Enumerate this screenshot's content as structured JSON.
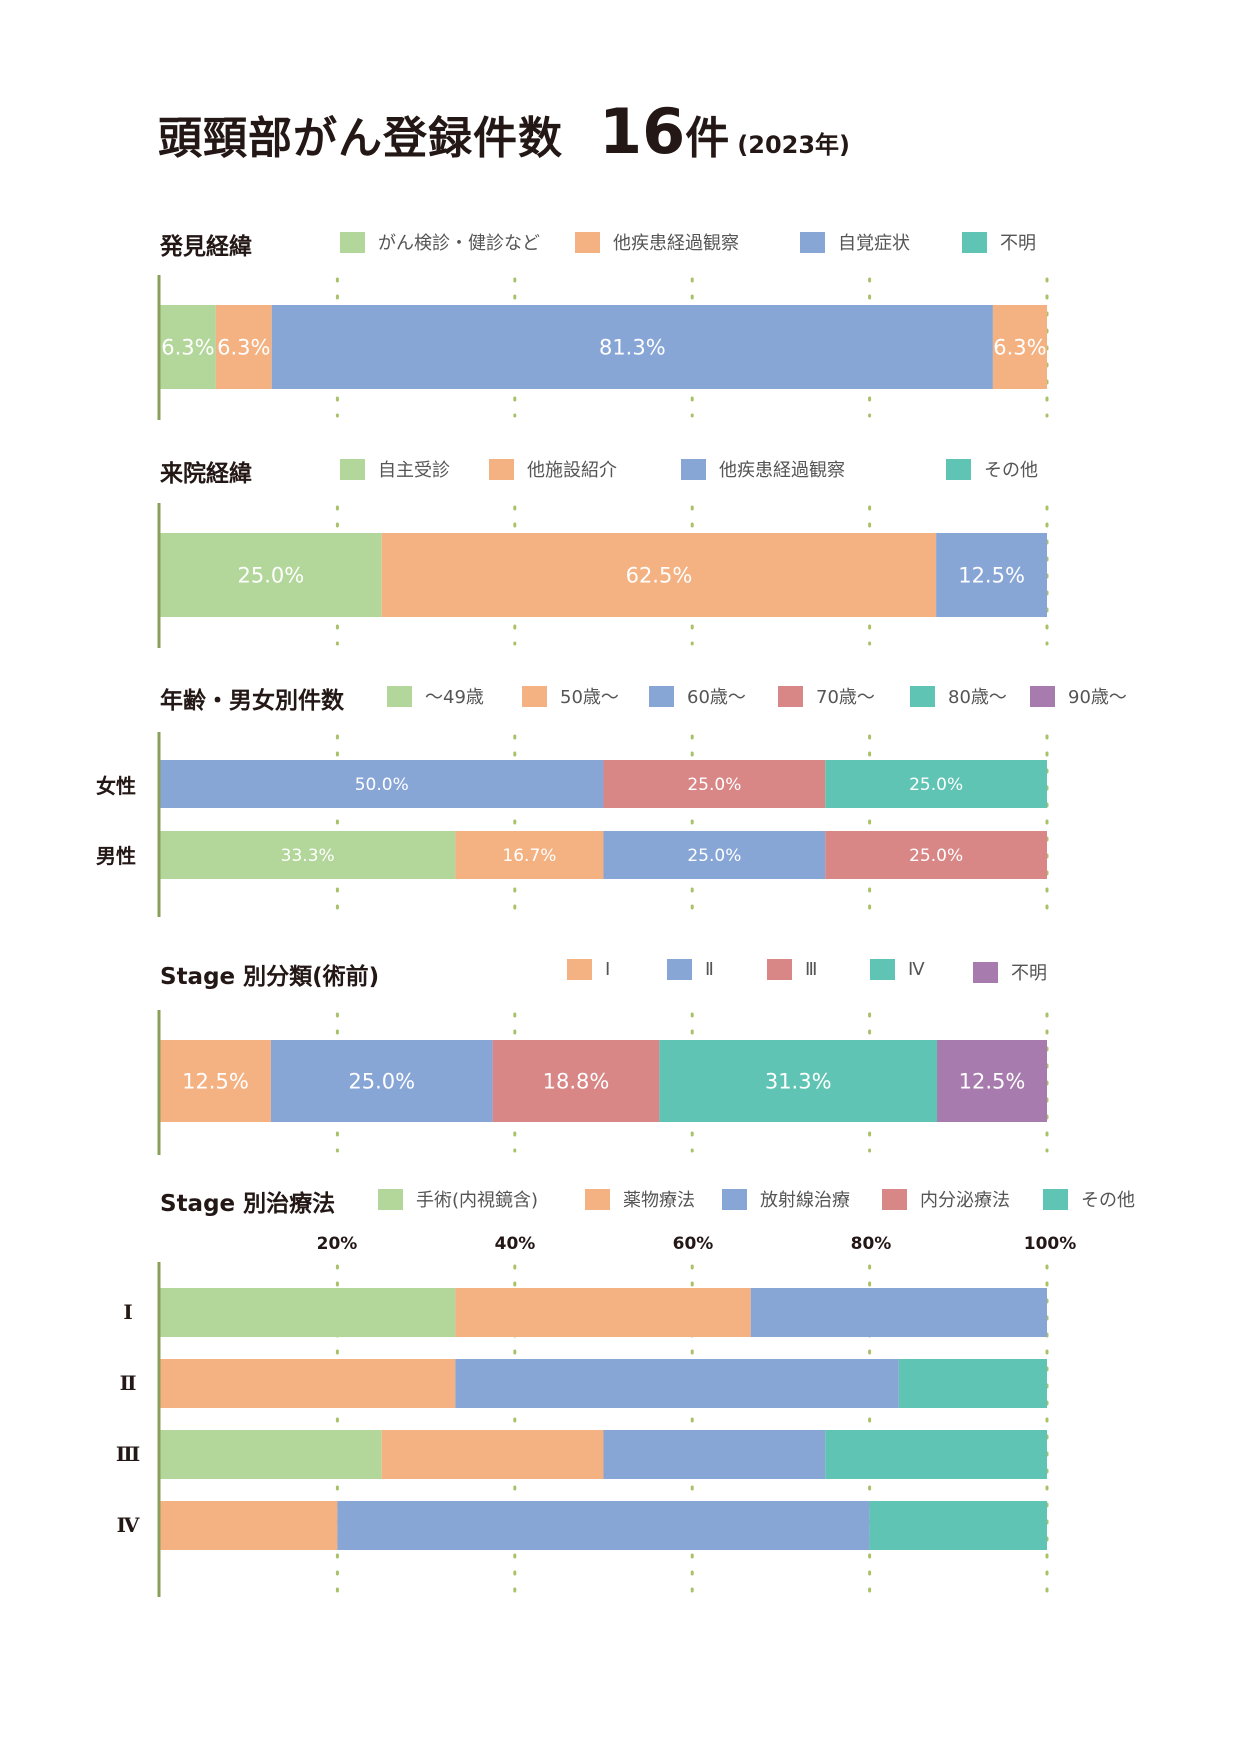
{
  "title": {
    "main": "頭頸部がん登録件数",
    "count": "16",
    "unit": "件",
    "year": "(2023年)"
  },
  "colors": {
    "green": "#b3d69b",
    "orange": "#f4b283",
    "blue": "#87a6d6",
    "red": "#d98686",
    "teal": "#5fc4b3",
    "purple": "#a77bad",
    "axis": "#8aa05a",
    "grid": "#a9c26a"
  },
  "chart_data": [
    {
      "type": "bar",
      "stacked": true,
      "orientation": "horizontal",
      "title": "発見経緯",
      "legend": [
        {
          "label": "がん検診・健診など",
          "color": "#b3d69b"
        },
        {
          "label": "他疾患経過観察",
          "color": "#f4b283"
        },
        {
          "label": "自覚症状",
          "color": "#87a6d6"
        },
        {
          "label": "不明",
          "color": "#5fc4b3"
        }
      ],
      "rows": [
        {
          "label": "",
          "segments": [
            {
              "value": 6.3,
              "color": "#b3d69b",
              "text": "6.3%"
            },
            {
              "value": 6.3,
              "color": "#f4b283",
              "text": "6.3%"
            },
            {
              "value": 81.3,
              "color": "#87a6d6",
              "text": "81.3%"
            },
            {
              "value": 6.3,
              "color": "#f4b283",
              "text": "6.3%"
            }
          ]
        }
      ],
      "xlim": [
        0,
        100
      ],
      "grid": true
    },
    {
      "type": "bar",
      "stacked": true,
      "orientation": "horizontal",
      "title": "来院経緯",
      "legend": [
        {
          "label": "自主受診",
          "color": "#b3d69b"
        },
        {
          "label": "他施設紹介",
          "color": "#f4b283"
        },
        {
          "label": "他疾患経過観察",
          "color": "#87a6d6"
        },
        {
          "label": "その他",
          "color": "#5fc4b3"
        }
      ],
      "rows": [
        {
          "label": "",
          "segments": [
            {
              "value": 25.0,
              "color": "#b3d69b",
              "text": "25.0%"
            },
            {
              "value": 62.5,
              "color": "#f4b283",
              "text": "62.5%"
            },
            {
              "value": 12.5,
              "color": "#87a6d6",
              "text": "12.5%"
            }
          ]
        }
      ],
      "xlim": [
        0,
        100
      ],
      "grid": true
    },
    {
      "type": "bar",
      "stacked": true,
      "orientation": "horizontal",
      "title": "年齢・男女別件数",
      "legend": [
        {
          "label": "〜49歳",
          "color": "#b3d69b"
        },
        {
          "label": "50歳〜",
          "color": "#f4b283"
        },
        {
          "label": "60歳〜",
          "color": "#87a6d6"
        },
        {
          "label": "70歳〜",
          "color": "#d98686"
        },
        {
          "label": "80歳〜",
          "color": "#5fc4b3"
        },
        {
          "label": "90歳〜",
          "color": "#a77bad"
        }
      ],
      "rows": [
        {
          "label": "女性",
          "segments": [
            {
              "value": 50.0,
              "color": "#87a6d6",
              "text": "50.0%"
            },
            {
              "value": 25.0,
              "color": "#d98686",
              "text": "25.0%"
            },
            {
              "value": 25.0,
              "color": "#5fc4b3",
              "text": "25.0%"
            }
          ]
        },
        {
          "label": "男性",
          "segments": [
            {
              "value": 33.3,
              "color": "#b3d69b",
              "text": "33.3%"
            },
            {
              "value": 16.7,
              "color": "#f4b283",
              "text": "16.7%"
            },
            {
              "value": 25.0,
              "color": "#87a6d6",
              "text": "25.0%"
            },
            {
              "value": 25.0,
              "color": "#d98686",
              "text": "25.0%"
            }
          ]
        }
      ],
      "xlim": [
        0,
        100
      ],
      "grid": true
    },
    {
      "type": "bar",
      "stacked": true,
      "orientation": "horizontal",
      "title": "Stage 別分類(術前)",
      "legend": [
        {
          "label": "Ⅰ",
          "color": "#f4b283"
        },
        {
          "label": "Ⅱ",
          "color": "#87a6d6"
        },
        {
          "label": "Ⅲ",
          "color": "#d98686"
        },
        {
          "label": "Ⅳ",
          "color": "#5fc4b3"
        },
        {
          "label": "不明",
          "color": "#a77bad"
        }
      ],
      "rows": [
        {
          "label": "",
          "segments": [
            {
              "value": 12.5,
              "color": "#f4b283",
              "text": "12.5%"
            },
            {
              "value": 25.0,
              "color": "#87a6d6",
              "text": "25.0%"
            },
            {
              "value": 18.8,
              "color": "#d98686",
              "text": "18.8%"
            },
            {
              "value": 31.3,
              "color": "#5fc4b3",
              "text": "31.3%"
            },
            {
              "value": 12.5,
              "color": "#a77bad",
              "text": "12.5%"
            }
          ]
        }
      ],
      "xlim": [
        0,
        100
      ],
      "grid": true
    },
    {
      "type": "bar",
      "stacked": true,
      "orientation": "horizontal",
      "title": "Stage 別治療法",
      "legend": [
        {
          "label": "手術(内視鏡含)",
          "color": "#b3d69b"
        },
        {
          "label": "薬物療法",
          "color": "#f4b283"
        },
        {
          "label": "放射線治療",
          "color": "#87a6d6"
        },
        {
          "label": "内分泌療法",
          "color": "#d98686"
        },
        {
          "label": "その他",
          "color": "#5fc4b3"
        }
      ],
      "x_ticks": [
        "20%",
        "40%",
        "60%",
        "80%",
        "100%"
      ],
      "rows": [
        {
          "label": "Ⅰ",
          "segments": [
            {
              "value": 33.3,
              "color": "#b3d69b",
              "text": ""
            },
            {
              "value": 33.3,
              "color": "#f4b283",
              "text": ""
            },
            {
              "value": 33.4,
              "color": "#87a6d6",
              "text": ""
            }
          ]
        },
        {
          "label": "Ⅱ",
          "segments": [
            {
              "value": 33.3,
              "color": "#f4b283",
              "text": ""
            },
            {
              "value": 50.0,
              "color": "#87a6d6",
              "text": ""
            },
            {
              "value": 16.7,
              "color": "#5fc4b3",
              "text": ""
            }
          ]
        },
        {
          "label": "Ⅲ",
          "segments": [
            {
              "value": 25.0,
              "color": "#b3d69b",
              "text": ""
            },
            {
              "value": 25.0,
              "color": "#f4b283",
              "text": ""
            },
            {
              "value": 25.0,
              "color": "#87a6d6",
              "text": ""
            },
            {
              "value": 25.0,
              "color": "#5fc4b3",
              "text": ""
            }
          ]
        },
        {
          "label": "Ⅳ",
          "segments": [
            {
              "value": 20.0,
              "color": "#f4b283",
              "text": ""
            },
            {
              "value": 60.0,
              "color": "#87a6d6",
              "text": ""
            },
            {
              "value": 20.0,
              "color": "#5fc4b3",
              "text": ""
            }
          ]
        }
      ],
      "xlim": [
        0,
        100
      ],
      "grid": true
    }
  ]
}
